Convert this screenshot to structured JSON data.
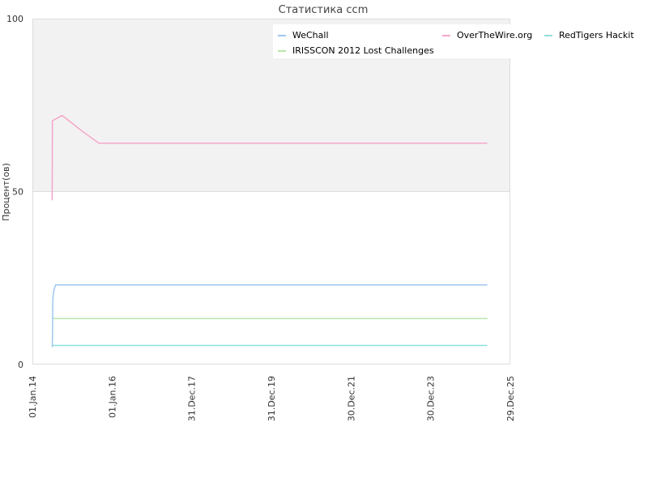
{
  "chart_data": {
    "type": "line",
    "title": "Статистика ccm",
    "xlabel": "",
    "ylabel": "Процент(ов)",
    "x_ticks": [
      "01.Jan.14",
      "01.Jan.16",
      "31.Dec.17",
      "31.Dec.19",
      "30.Dec.21",
      "30.Dec.23",
      "29.Dec.25"
    ],
    "x_range": [
      "2014-01-01",
      "2025-12-29"
    ],
    "y_ticks": [
      "100",
      "50",
      "0"
    ],
    "ylim": [
      0,
      100
    ],
    "grid": "alternating horizontal bands",
    "legend_position": "top-right",
    "background_colors": {
      "upper_band": "#f2f2f2",
      "lower_band": "#ffffff",
      "frame": "#dddddd"
    },
    "series": [
      {
        "name": "WeChall",
        "color": "#9ec6ee",
        "points": [
          [
            "2014-07-02",
            5
          ],
          [
            "2014-07-04",
            8
          ],
          [
            "2014-07-06",
            18
          ],
          [
            "2014-07-10",
            20
          ],
          [
            "2014-07-15",
            21
          ],
          [
            "2014-07-22",
            22
          ],
          [
            "2014-08-01",
            23
          ],
          [
            "2015-01-01",
            23
          ],
          [
            "2025-06-01",
            23
          ]
        ]
      },
      {
        "name": "OverTheWire.org",
        "color": "#f4a6c8",
        "points": [
          [
            "2014-07-01",
            47.5
          ],
          [
            "2014-07-03",
            70.5
          ],
          [
            "2014-10-01",
            72
          ],
          [
            "2014-12-01",
            70.5
          ],
          [
            "2015-04-01",
            67.5
          ],
          [
            "2015-09-01",
            64
          ],
          [
            "2025-06-01",
            64
          ]
        ]
      },
      {
        "name": "RedTigers Hackit",
        "color": "#8ee0dc",
        "points": [
          [
            "2014-07-02",
            5.5
          ],
          [
            "2025-06-01",
            5.5
          ]
        ]
      },
      {
        "name": "IRISSCON 2012 Lost Challenges",
        "color": "#b5e8a8",
        "points": [
          [
            "2014-07-05",
            13.3
          ],
          [
            "2025-06-01",
            13.3
          ]
        ]
      }
    ],
    "legend": [
      {
        "label": "WeChall",
        "color": "#9ec6ee"
      },
      {
        "label": "OverTheWire.org",
        "color": "#f4a6c8"
      },
      {
        "label": "RedTigers Hackit",
        "color": "#8ee0dc"
      },
      {
        "label": "IRISSCON 2012 Lost Challenges",
        "color": "#b5e8a8"
      }
    ]
  }
}
